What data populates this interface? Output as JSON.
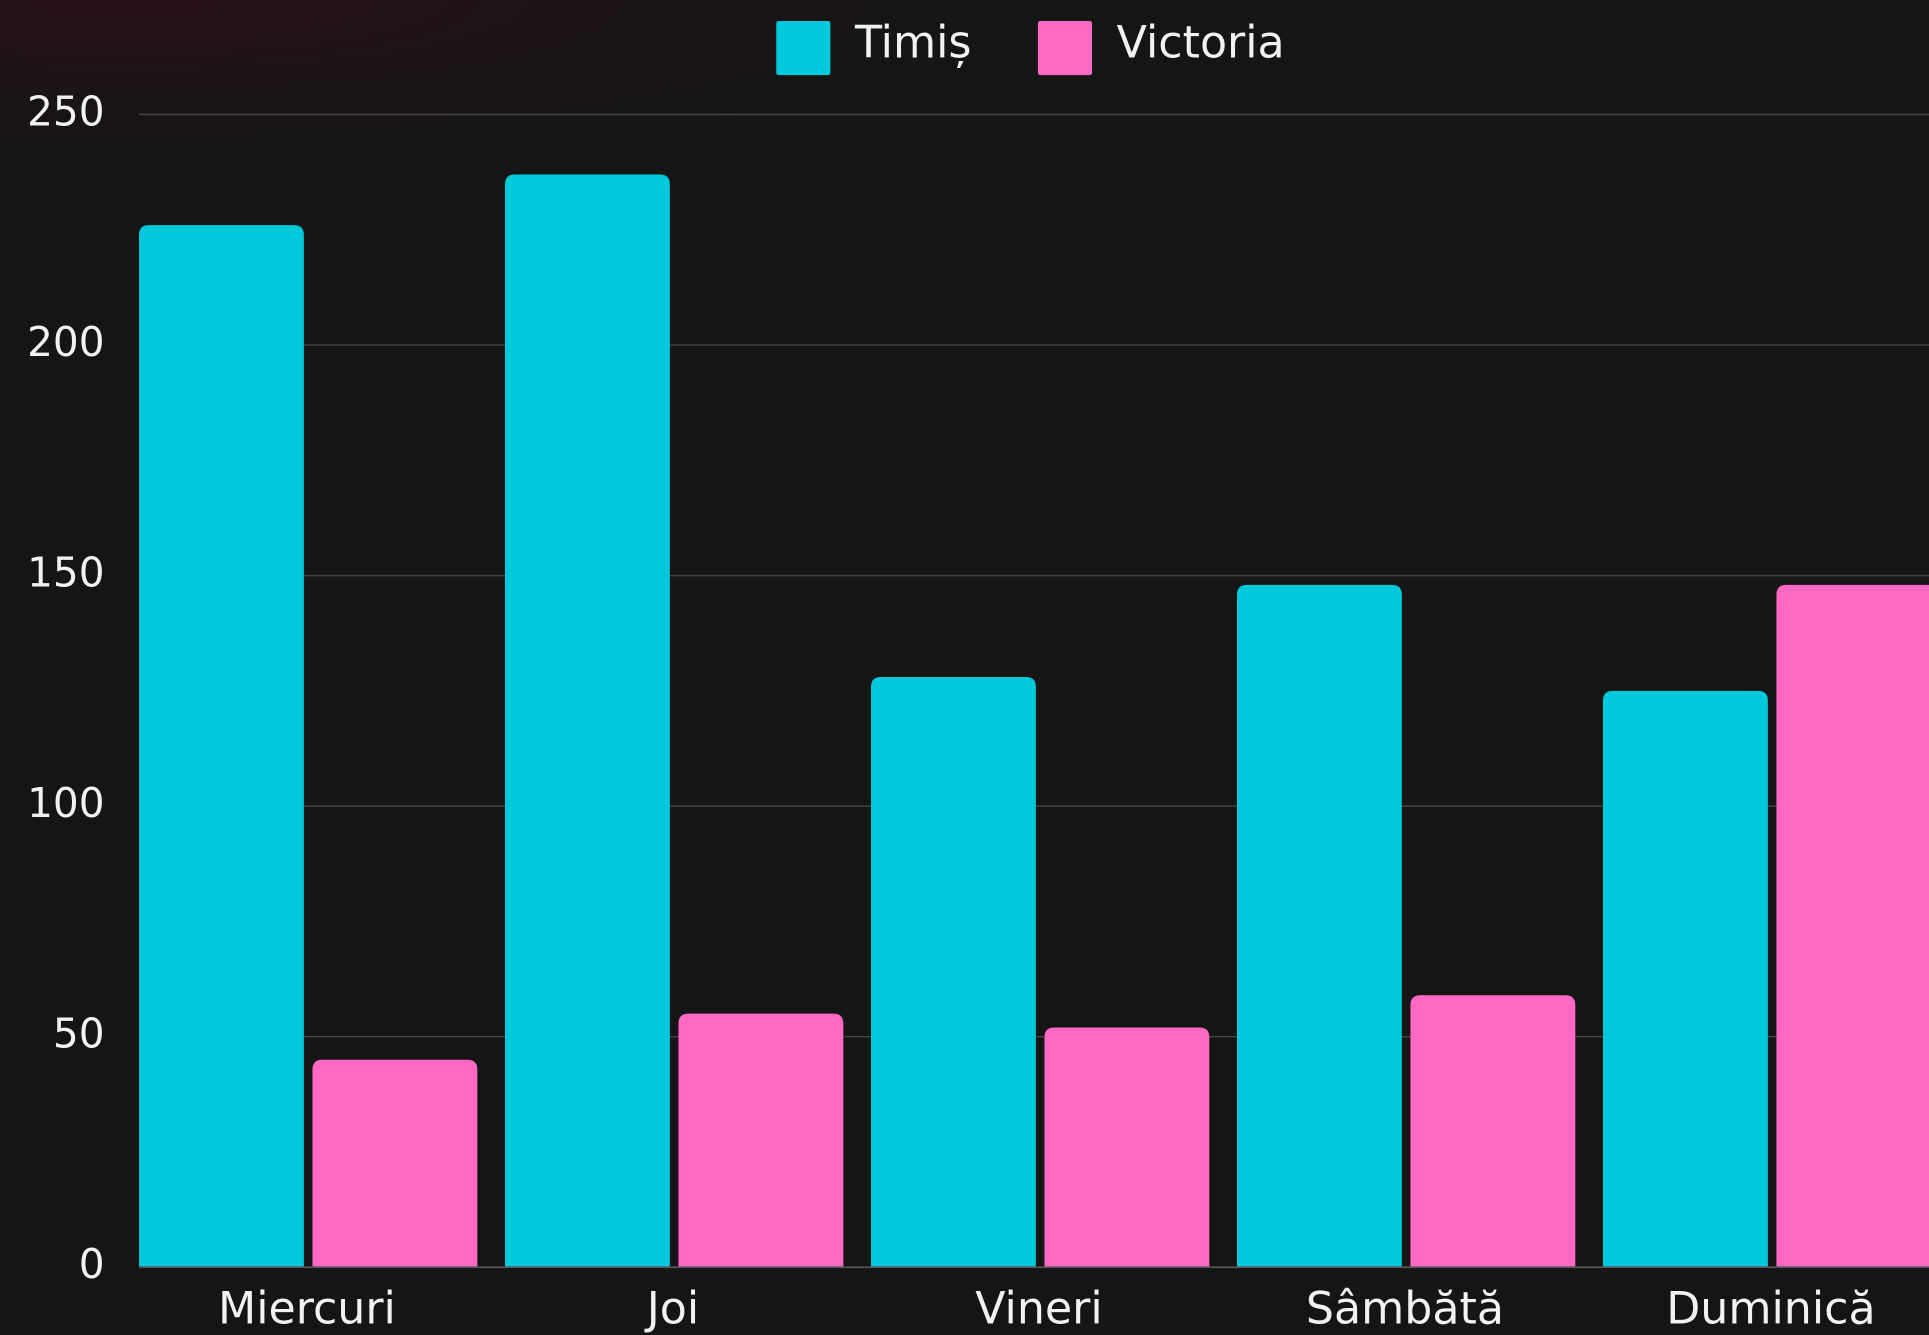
{
  "chart_data": {
    "type": "bar",
    "categories": [
      "Miercuri",
      "Joi",
      "Vineri",
      "Sâmbătă",
      "Duminică"
    ],
    "series": [
      {
        "name": "Timiș",
        "color": "#00c9dc",
        "values": [
          226,
          237,
          128,
          148,
          125
        ]
      },
      {
        "name": "Victoria",
        "color": "#ff69c3",
        "values": [
          45,
          55,
          52,
          59,
          148
        ]
      }
    ],
    "ylim": [
      0,
      250
    ],
    "yticks": [
      0,
      50,
      100,
      150,
      200,
      250
    ],
    "grid": true,
    "legend": "top"
  }
}
